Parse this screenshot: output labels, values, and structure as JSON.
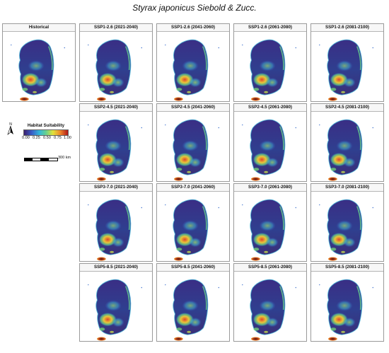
{
  "title": "Styrax japonicus Siebold & Zucc.",
  "legend": {
    "title": "Habitat Suitability",
    "ticks": [
      "0.00",
      "0.25",
      "0.50",
      "0.75",
      "1.00"
    ],
    "scale_label": "300 km",
    "north_label": "N"
  },
  "panels": [
    {
      "label": "Historical"
    },
    {
      "label": "SSP1-2.6 (2021-2040)"
    },
    {
      "label": "SSP1-2.6 (2041-2060)"
    },
    {
      "label": "SSP1-2.6 (2061-2080)"
    },
    {
      "label": "SSP1-2.6 (2081-2100)"
    },
    {
      "label": "SSP2-4.5 (2021-2040)"
    },
    {
      "label": "SSP2-4.5 (2041-2060)"
    },
    {
      "label": "SSP2-4.5 (2061-2080)"
    },
    {
      "label": "SSP2-4.5 (2081-2100)"
    },
    {
      "label": "SSP3-7.0 (2021-2040)"
    },
    {
      "label": "SSP3-7.0 (2041-2060)"
    },
    {
      "label": "SSP3-7.0 (2061-2080)"
    },
    {
      "label": "SSP3-7.0 (2081-2100)"
    },
    {
      "label": "SSP5-8.5 (2021-2040)"
    },
    {
      "label": "SSP5-8.5 (2041-2060)"
    },
    {
      "label": "SSP5-8.5 (2061-2080)"
    },
    {
      "label": "SSP5-8.5 (2081-2100)"
    }
  ]
}
